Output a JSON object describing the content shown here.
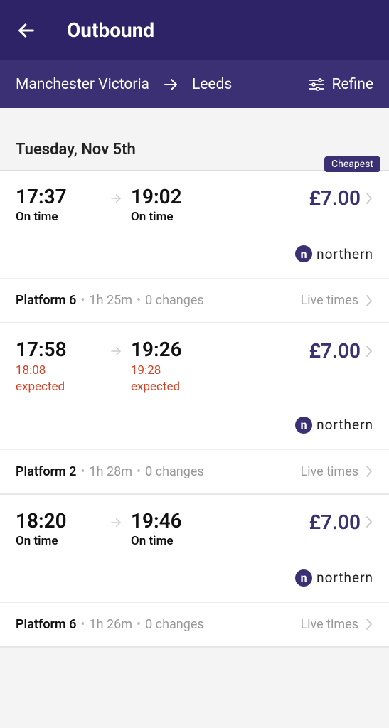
{
  "colors": {
    "header_bg": "#2d2366",
    "route_bg": "#3a3073",
    "price": "#3a3073",
    "delay": "#d94126",
    "muted": "#999999",
    "border": "#e8e8e8"
  },
  "header": {
    "title": "Outbound"
  },
  "route": {
    "from": "Manchester Victoria",
    "to": "Leeds",
    "refine_label": "Refine"
  },
  "date_label": "Tuesday, Nov 5th",
  "journeys": [
    {
      "dep_time": "17:37",
      "dep_status": "On time",
      "dep_delay": false,
      "arr_time": "19:02",
      "arr_status": "On time",
      "arr_delay": false,
      "badge": "Cheapest",
      "price": "£7.00",
      "operator": "northern",
      "platform": "Platform 6",
      "duration": "1h 25m",
      "changes": "0 changes",
      "live_label": "Live times"
    },
    {
      "dep_time": "17:58",
      "dep_status": "18:08\nexpected",
      "dep_delay": true,
      "arr_time": "19:26",
      "arr_status": "19:28\nexpected",
      "arr_delay": true,
      "badge": "",
      "price": "£7.00",
      "operator": "northern",
      "platform": "Platform 2",
      "duration": "1h 28m",
      "changes": "0 changes",
      "live_label": "Live times"
    },
    {
      "dep_time": "18:20",
      "dep_status": "On time",
      "dep_delay": false,
      "arr_time": "19:46",
      "arr_status": "On time",
      "arr_delay": false,
      "badge": "",
      "price": "£7.00",
      "operator": "northern",
      "platform": "Platform 6",
      "duration": "1h 26m",
      "changes": "0 changes",
      "live_label": "Live times"
    }
  ]
}
